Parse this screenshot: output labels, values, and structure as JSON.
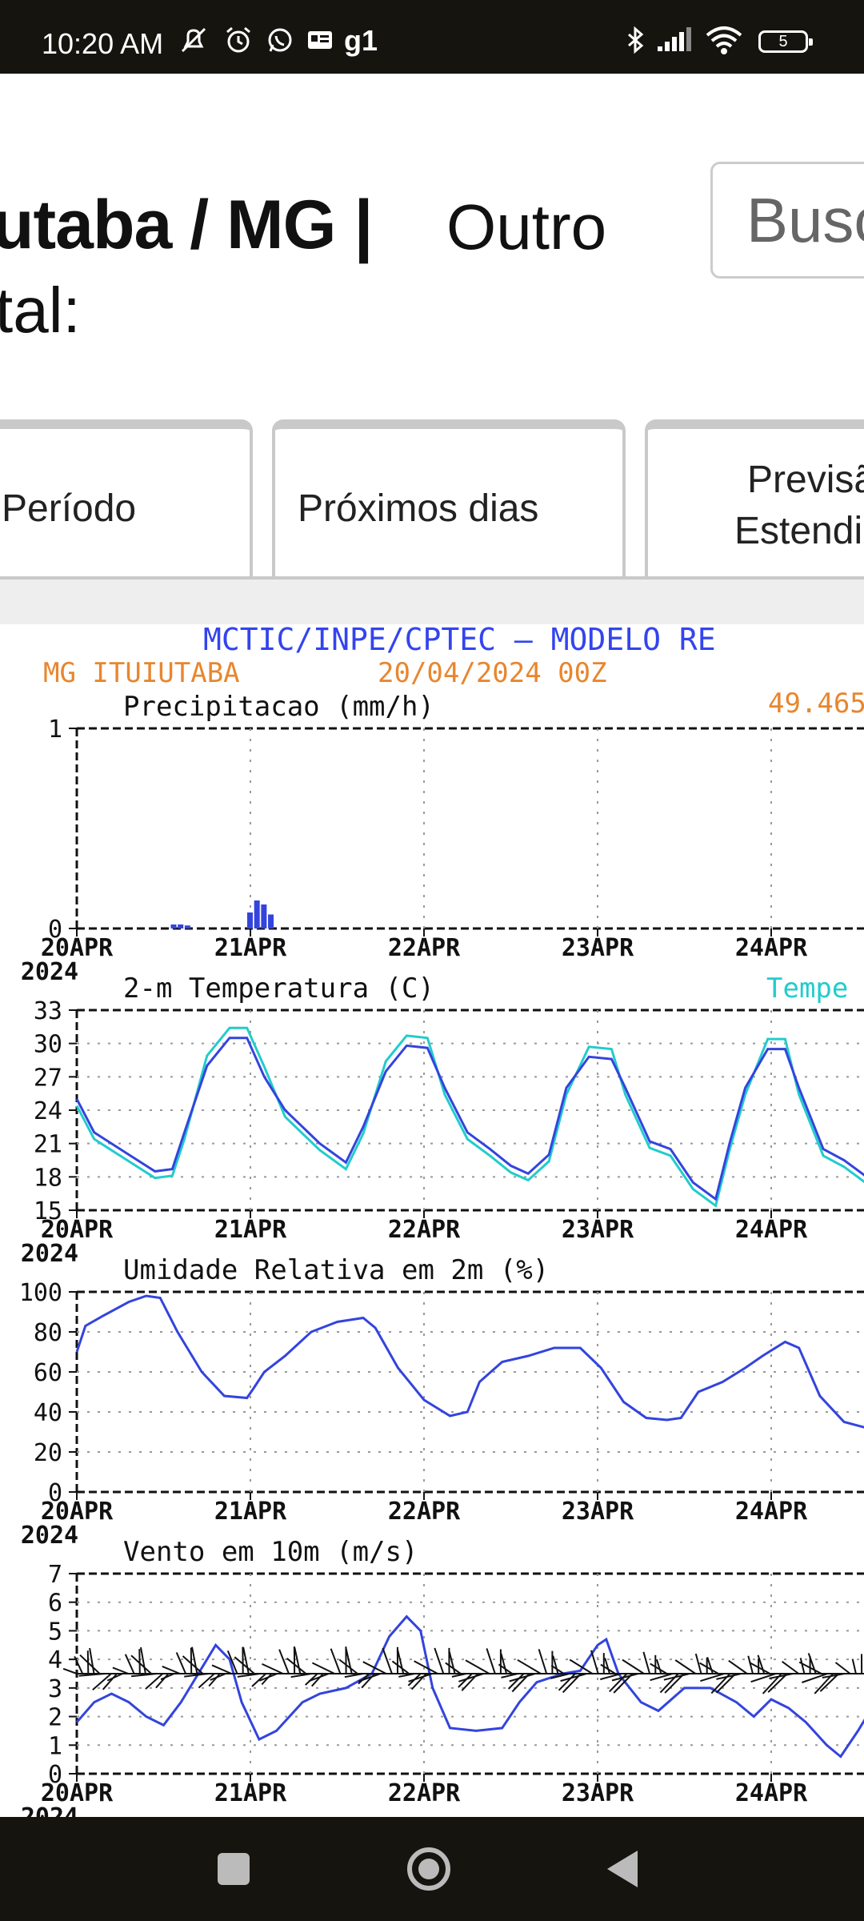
{
  "status_bar": {
    "time": "10:20 AM",
    "carrier_label": "g1",
    "battery": "5"
  },
  "header": {
    "city": "utaba / MG |",
    "other": "Outro",
    "line2": "tal:",
    "search_placeholder": "Busc"
  },
  "tabs": [
    {
      "label": "Período"
    },
    {
      "label": "Próximos dias"
    },
    {
      "label_line1": "Previsã",
      "label_line2": "Estendi"
    }
  ],
  "meteogram": {
    "header_title": "MCTIC/INPE/CPTEC — MODELO RE",
    "location": "MG ITUIUTABA",
    "run": "20/04/2024 00Z",
    "corner_value": "49.465",
    "date_labels": [
      "20APR",
      "21APR",
      "22APR",
      "23APR",
      "24APR"
    ],
    "year_label": "2024",
    "panels": [
      {
        "title": "Precipitacao (mm/h)",
        "yticks": [
          "1",
          "0"
        ]
      },
      {
        "title": "2-m Temperatura (C)",
        "legend": "Tempe",
        "yticks": [
          "33",
          "30",
          "27",
          "24",
          "21",
          "18",
          "15"
        ]
      },
      {
        "title": "Umidade Relativa em 2m (%)",
        "yticks": [
          "100",
          "80",
          "60",
          "40",
          "20",
          "0"
        ]
      },
      {
        "title": "Vento em 10m (m/s)",
        "yticks": [
          "7",
          "6",
          "5",
          "4",
          "3",
          "2",
          "1",
          "0"
        ]
      }
    ],
    "colors": {
      "blue": "#3344dd",
      "cyan": "#22cccc",
      "orange": "#e8862e",
      "title_blue": "#3344ee"
    }
  }
}
